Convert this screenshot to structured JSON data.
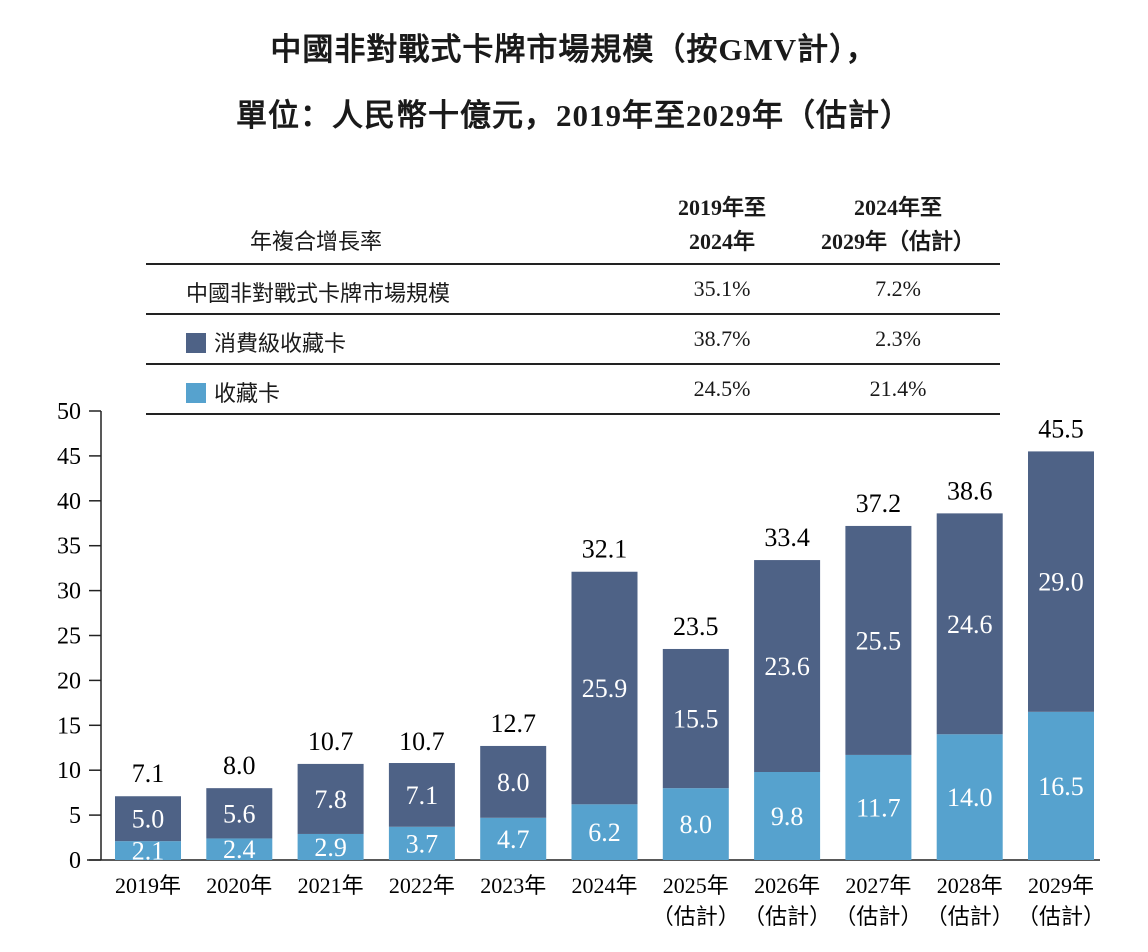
{
  "title_line1": "中國非對戰式卡牌市場規模（按GMV計），",
  "title_line2": "單位：人民幣十億元，2019年至2029年（估計）",
  "cagr_table": {
    "row_header": "年複合增長率",
    "col1_line1": "2019年至",
    "col1_line2": "2024年",
    "col2_line1": "2024年至",
    "col2_line2": "2029年（估計）",
    "rows": [
      {
        "label": "中國非對戰式卡牌市場規模",
        "c1": "35.1%",
        "c2": "7.2%"
      },
      {
        "label": "消費級收藏卡",
        "c1": "38.7%",
        "c2": "2.3%",
        "color": "#4e6286"
      },
      {
        "label": "收藏卡",
        "c1": "24.5%",
        "c2": "21.4%",
        "color": "#56a2ce"
      }
    ]
  },
  "chart_data": {
    "type": "bar",
    "stacked": true,
    "categories": [
      "2019年",
      "2020年",
      "2021年",
      "2022年",
      "2023年",
      "2024年",
      "2025年",
      "2026年",
      "2027年",
      "2028年",
      "2029年"
    ],
    "category_sublabels": [
      "",
      "",
      "",
      "",
      "",
      "",
      "（估計）",
      "（估計）",
      "（估計）",
      "（估計）",
      "（估計）"
    ],
    "series": [
      {
        "name": "收藏卡",
        "color": "#56a2ce",
        "values": [
          2.1,
          2.4,
          2.9,
          3.7,
          4.7,
          6.2,
          8.0,
          9.8,
          11.7,
          14.0,
          16.5
        ]
      },
      {
        "name": "消費級收藏卡",
        "color": "#4e6286",
        "values": [
          5.0,
          5.6,
          7.8,
          7.1,
          8.0,
          25.9,
          15.5,
          23.6,
          25.5,
          24.6,
          29.0
        ]
      }
    ],
    "totals": [
      7.1,
      8.0,
      10.7,
      10.7,
      12.7,
      32.1,
      23.5,
      33.4,
      37.2,
      38.6,
      45.5
    ],
    "ylim": [
      0,
      50
    ],
    "yticks": [
      0,
      5,
      10,
      15,
      20,
      25,
      30,
      35,
      40,
      45,
      50
    ],
    "legend": "table-top",
    "grid": false
  }
}
